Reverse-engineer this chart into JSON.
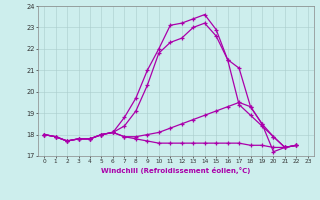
{
  "xlabel": "Windchill (Refroidissement éolien,°C)",
  "background_color": "#cdeeed",
  "line_color": "#aa00aa",
  "grid_color": "#aacccc",
  "xlim": [
    -0.5,
    23.5
  ],
  "ylim": [
    17,
    24
  ],
  "yticks": [
    17,
    18,
    19,
    20,
    21,
    22,
    23,
    24
  ],
  "xticks": [
    0,
    1,
    2,
    3,
    4,
    5,
    6,
    7,
    8,
    9,
    10,
    11,
    12,
    13,
    14,
    15,
    16,
    17,
    18,
    19,
    20,
    21,
    22,
    23
  ],
  "lines": [
    [
      18.0,
      17.9,
      17.7,
      17.8,
      17.8,
      18.0,
      18.1,
      18.8,
      19.7,
      21.0,
      22.0,
      23.1,
      23.2,
      23.4,
      23.6,
      22.9,
      21.5,
      21.1,
      19.3,
      18.5,
      17.2,
      17.4,
      17.5
    ],
    [
      18.0,
      17.9,
      17.7,
      17.8,
      17.8,
      18.0,
      18.1,
      18.4,
      19.1,
      20.3,
      21.8,
      22.3,
      22.5,
      23.0,
      23.2,
      22.6,
      21.5,
      19.4,
      18.9,
      18.4,
      17.9,
      17.4,
      17.5
    ],
    [
      18.0,
      17.9,
      17.7,
      17.8,
      17.8,
      18.0,
      18.1,
      17.9,
      17.9,
      18.0,
      18.1,
      18.3,
      18.5,
      18.7,
      18.9,
      19.1,
      19.3,
      19.5,
      19.3,
      18.5,
      17.9,
      17.4,
      17.5
    ],
    [
      18.0,
      17.9,
      17.7,
      17.8,
      17.8,
      18.0,
      18.1,
      17.9,
      17.8,
      17.7,
      17.6,
      17.6,
      17.6,
      17.6,
      17.6,
      17.6,
      17.6,
      17.6,
      17.5,
      17.5,
      17.4,
      17.4,
      17.5
    ]
  ]
}
